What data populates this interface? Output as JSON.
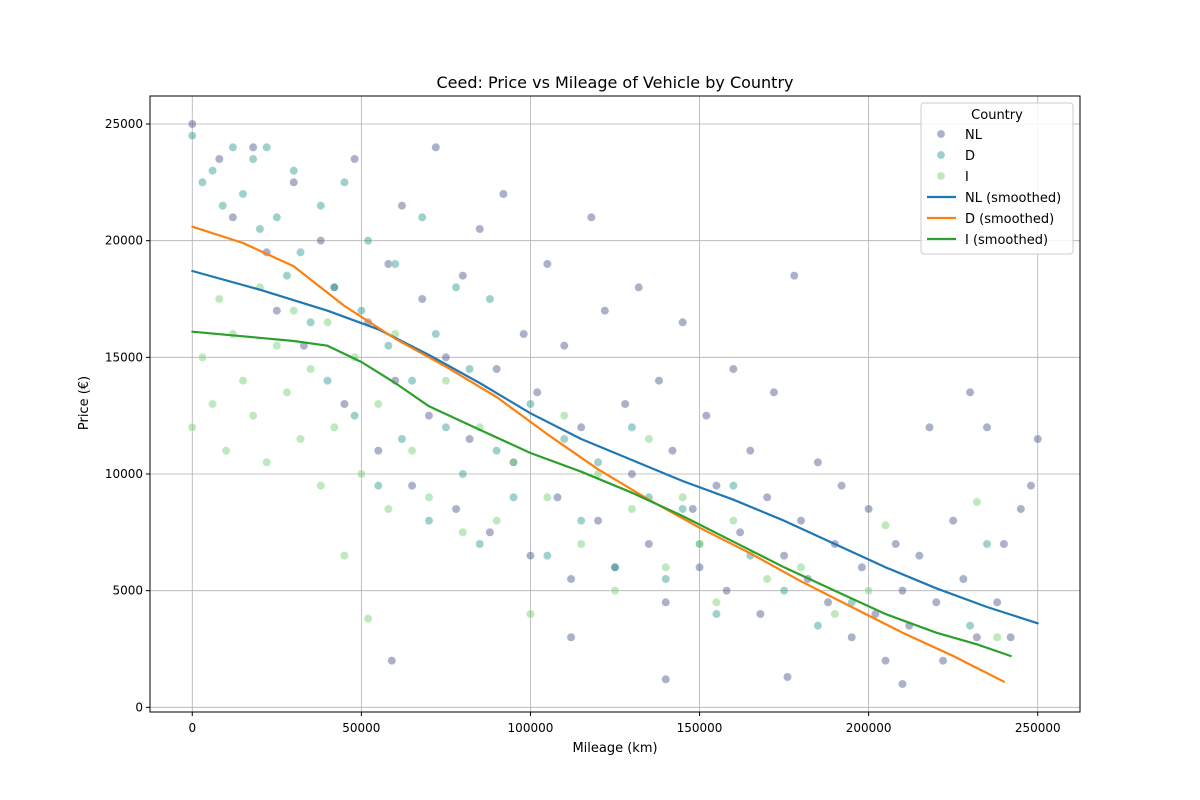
{
  "chart_data": {
    "type": "scatter",
    "title": "Ceed: Price vs Mileage of Vehicle by Country",
    "xlabel": "Mileage (km)",
    "ylabel": "Price (€)",
    "xlim": [
      -12500,
      262500
    ],
    "ylim": [
      -200,
      26200
    ],
    "x_ticks": [
      0,
      50000,
      100000,
      150000,
      200000,
      250000
    ],
    "y_ticks": [
      0,
      5000,
      10000,
      15000,
      20000,
      25000
    ],
    "grid": true,
    "legend": {
      "title": "Country",
      "placement": "top-right"
    },
    "colors": {
      "NL": "#46518a",
      "D": "#2a9a8e",
      "I": "#6fcf6f",
      "NL_smooth": "#1f77b4",
      "D_smooth": "#ff7f0e",
      "I_smooth": "#2ca02c"
    },
    "series": [
      {
        "name": "NL",
        "kind": "scatter",
        "points": [
          [
            0,
            25000
          ],
          [
            8000,
            23500
          ],
          [
            12000,
            21000
          ],
          [
            18000,
            24000
          ],
          [
            22000,
            19500
          ],
          [
            25000,
            17000
          ],
          [
            30000,
            22500
          ],
          [
            33000,
            15500
          ],
          [
            38000,
            20000
          ],
          [
            42000,
            18000
          ],
          [
            45000,
            13000
          ],
          [
            48000,
            23500
          ],
          [
            52000,
            16500
          ],
          [
            55000,
            11000
          ],
          [
            58000,
            19000
          ],
          [
            60000,
            14000
          ],
          [
            62000,
            21500
          ],
          [
            65000,
            9500
          ],
          [
            68000,
            17500
          ],
          [
            70000,
            12500
          ],
          [
            72000,
            24000
          ],
          [
            75000,
            15000
          ],
          [
            78000,
            8500
          ],
          [
            80000,
            18500
          ],
          [
            82000,
            11500
          ],
          [
            85000,
            20500
          ],
          [
            88000,
            7500
          ],
          [
            90000,
            14500
          ],
          [
            92000,
            22000
          ],
          [
            95000,
            10500
          ],
          [
            98000,
            16000
          ],
          [
            100000,
            6500
          ],
          [
            102000,
            13500
          ],
          [
            105000,
            19000
          ],
          [
            108000,
            9000
          ],
          [
            110000,
            15500
          ],
          [
            112000,
            5500
          ],
          [
            115000,
            12000
          ],
          [
            118000,
            21000
          ],
          [
            120000,
            8000
          ],
          [
            122000,
            17000
          ],
          [
            125000,
            6000
          ],
          [
            128000,
            13000
          ],
          [
            130000,
            10000
          ],
          [
            132000,
            18000
          ],
          [
            135000,
            7000
          ],
          [
            138000,
            14000
          ],
          [
            140000,
            4500
          ],
          [
            142000,
            11000
          ],
          [
            145000,
            16500
          ],
          [
            148000,
            8500
          ],
          [
            150000,
            6000
          ],
          [
            152000,
            12500
          ],
          [
            155000,
            9500
          ],
          [
            158000,
            5000
          ],
          [
            160000,
            14500
          ],
          [
            162000,
            7500
          ],
          [
            165000,
            11000
          ],
          [
            168000,
            4000
          ],
          [
            170000,
            9000
          ],
          [
            172000,
            13500
          ],
          [
            175000,
            6500
          ],
          [
            178000,
            18500
          ],
          [
            180000,
            8000
          ],
          [
            182000,
            5500
          ],
          [
            185000,
            10500
          ],
          [
            188000,
            4500
          ],
          [
            190000,
            7000
          ],
          [
            192000,
            9500
          ],
          [
            195000,
            3000
          ],
          [
            198000,
            6000
          ],
          [
            200000,
            8500
          ],
          [
            202000,
            4000
          ],
          [
            205000,
            2000
          ],
          [
            208000,
            7000
          ],
          [
            210000,
            5000
          ],
          [
            212000,
            3500
          ],
          [
            215000,
            6500
          ],
          [
            218000,
            12000
          ],
          [
            220000,
            4500
          ],
          [
            222000,
            2000
          ],
          [
            225000,
            8000
          ],
          [
            228000,
            5500
          ],
          [
            230000,
            13500
          ],
          [
            232000,
            3000
          ],
          [
            235000,
            12000
          ],
          [
            238000,
            4500
          ],
          [
            240000,
            7000
          ],
          [
            242000,
            3000
          ],
          [
            245000,
            8500
          ],
          [
            248000,
            9500
          ],
          [
            250000,
            11500
          ],
          [
            59000,
            2000
          ],
          [
            112000,
            3000
          ],
          [
            140000,
            1200
          ],
          [
            176000,
            1300
          ],
          [
            210000,
            1000
          ]
        ]
      },
      {
        "name": "D",
        "kind": "scatter",
        "points": [
          [
            0,
            24500
          ],
          [
            3000,
            22500
          ],
          [
            6000,
            23000
          ],
          [
            9000,
            21500
          ],
          [
            12000,
            24000
          ],
          [
            15000,
            22000
          ],
          [
            18000,
            23500
          ],
          [
            20000,
            20500
          ],
          [
            22000,
            24000
          ],
          [
            25000,
            21000
          ],
          [
            28000,
            18500
          ],
          [
            30000,
            23000
          ],
          [
            32000,
            19500
          ],
          [
            35000,
            16500
          ],
          [
            38000,
            21500
          ],
          [
            40000,
            14000
          ],
          [
            42000,
            18000
          ],
          [
            45000,
            22500
          ],
          [
            48000,
            12500
          ],
          [
            50000,
            17000
          ],
          [
            52000,
            20000
          ],
          [
            55000,
            9500
          ],
          [
            58000,
            15500
          ],
          [
            60000,
            19000
          ],
          [
            62000,
            11500
          ],
          [
            65000,
            14000
          ],
          [
            68000,
            21000
          ],
          [
            70000,
            8000
          ],
          [
            72000,
            16000
          ],
          [
            75000,
            12000
          ],
          [
            78000,
            18000
          ],
          [
            80000,
            10000
          ],
          [
            82000,
            14500
          ],
          [
            85000,
            7000
          ],
          [
            88000,
            17500
          ],
          [
            90000,
            11000
          ],
          [
            95000,
            9000
          ],
          [
            100000,
            13000
          ],
          [
            105000,
            6500
          ],
          [
            110000,
            11500
          ],
          [
            115000,
            8000
          ],
          [
            120000,
            10500
          ],
          [
            125000,
            6000
          ],
          [
            130000,
            12000
          ],
          [
            135000,
            9000
          ],
          [
            140000,
            5500
          ],
          [
            145000,
            8500
          ],
          [
            150000,
            7000
          ],
          [
            155000,
            4000
          ],
          [
            160000,
            9500
          ],
          [
            165000,
            6500
          ],
          [
            175000,
            5000
          ],
          [
            185000,
            3500
          ],
          [
            195000,
            4500
          ],
          [
            230000,
            3500
          ],
          [
            235000,
            7000
          ]
        ]
      },
      {
        "name": "I",
        "kind": "scatter",
        "points": [
          [
            0,
            12000
          ],
          [
            3000,
            15000
          ],
          [
            6000,
            13000
          ],
          [
            8000,
            17500
          ],
          [
            10000,
            11000
          ],
          [
            12000,
            16000
          ],
          [
            15000,
            14000
          ],
          [
            18000,
            12500
          ],
          [
            20000,
            18000
          ],
          [
            22000,
            10500
          ],
          [
            25000,
            15500
          ],
          [
            28000,
            13500
          ],
          [
            30000,
            17000
          ],
          [
            32000,
            11500
          ],
          [
            35000,
            14500
          ],
          [
            38000,
            9500
          ],
          [
            40000,
            16500
          ],
          [
            42000,
            12000
          ],
          [
            45000,
            6500
          ],
          [
            48000,
            15000
          ],
          [
            50000,
            10000
          ],
          [
            52000,
            3800
          ],
          [
            55000,
            13000
          ],
          [
            58000,
            8500
          ],
          [
            60000,
            16000
          ],
          [
            65000,
            11000
          ],
          [
            70000,
            9000
          ],
          [
            75000,
            14000
          ],
          [
            80000,
            7500
          ],
          [
            85000,
            12000
          ],
          [
            90000,
            8000
          ],
          [
            95000,
            10500
          ],
          [
            100000,
            4000
          ],
          [
            105000,
            9000
          ],
          [
            110000,
            12500
          ],
          [
            115000,
            7000
          ],
          [
            120000,
            10000
          ],
          [
            125000,
            5000
          ],
          [
            130000,
            8500
          ],
          [
            135000,
            11500
          ],
          [
            140000,
            6000
          ],
          [
            145000,
            9000
          ],
          [
            150000,
            7000
          ],
          [
            155000,
            4500
          ],
          [
            160000,
            8000
          ],
          [
            170000,
            5500
          ],
          [
            180000,
            6000
          ],
          [
            190000,
            4000
          ],
          [
            200000,
            5000
          ],
          [
            205000,
            7800
          ],
          [
            232000,
            8800
          ],
          [
            238000,
            3000
          ]
        ]
      },
      {
        "name": "NL (smoothed)",
        "kind": "line",
        "points": [
          [
            0,
            18700
          ],
          [
            20000,
            17900
          ],
          [
            40000,
            17000
          ],
          [
            55000,
            16200
          ],
          [
            70000,
            15100
          ],
          [
            85000,
            13900
          ],
          [
            100000,
            12600
          ],
          [
            115000,
            11500
          ],
          [
            130000,
            10600
          ],
          [
            145000,
            9700
          ],
          [
            160000,
            8900
          ],
          [
            175000,
            8000
          ],
          [
            190000,
            7000
          ],
          [
            205000,
            6000
          ],
          [
            220000,
            5100
          ],
          [
            235000,
            4300
          ],
          [
            250000,
            3600
          ]
        ]
      },
      {
        "name": "D (smoothed)",
        "kind": "line",
        "points": [
          [
            0,
            20600
          ],
          [
            15000,
            19900
          ],
          [
            30000,
            18900
          ],
          [
            45000,
            17200
          ],
          [
            60000,
            15800
          ],
          [
            75000,
            14600
          ],
          [
            90000,
            13300
          ],
          [
            105000,
            11700
          ],
          [
            120000,
            10200
          ],
          [
            135000,
            8900
          ],
          [
            150000,
            7700
          ],
          [
            165000,
            6600
          ],
          [
            180000,
            5400
          ],
          [
            195000,
            4300
          ],
          [
            210000,
            3200
          ],
          [
            225000,
            2200
          ],
          [
            240000,
            1100
          ]
        ]
      },
      {
        "name": "I (smoothed)",
        "kind": "line",
        "points": [
          [
            0,
            16100
          ],
          [
            15000,
            15900
          ],
          [
            30000,
            15700
          ],
          [
            40000,
            15500
          ],
          [
            50000,
            14800
          ],
          [
            60000,
            13900
          ],
          [
            70000,
            12900
          ],
          [
            85000,
            11900
          ],
          [
            100000,
            10900
          ],
          [
            115000,
            10100
          ],
          [
            130000,
            9200
          ],
          [
            145000,
            8200
          ],
          [
            160000,
            7100
          ],
          [
            175000,
            6000
          ],
          [
            190000,
            5000
          ],
          [
            205000,
            4000
          ],
          [
            220000,
            3200
          ],
          [
            232000,
            2700
          ],
          [
            242000,
            2200
          ]
        ]
      }
    ]
  }
}
